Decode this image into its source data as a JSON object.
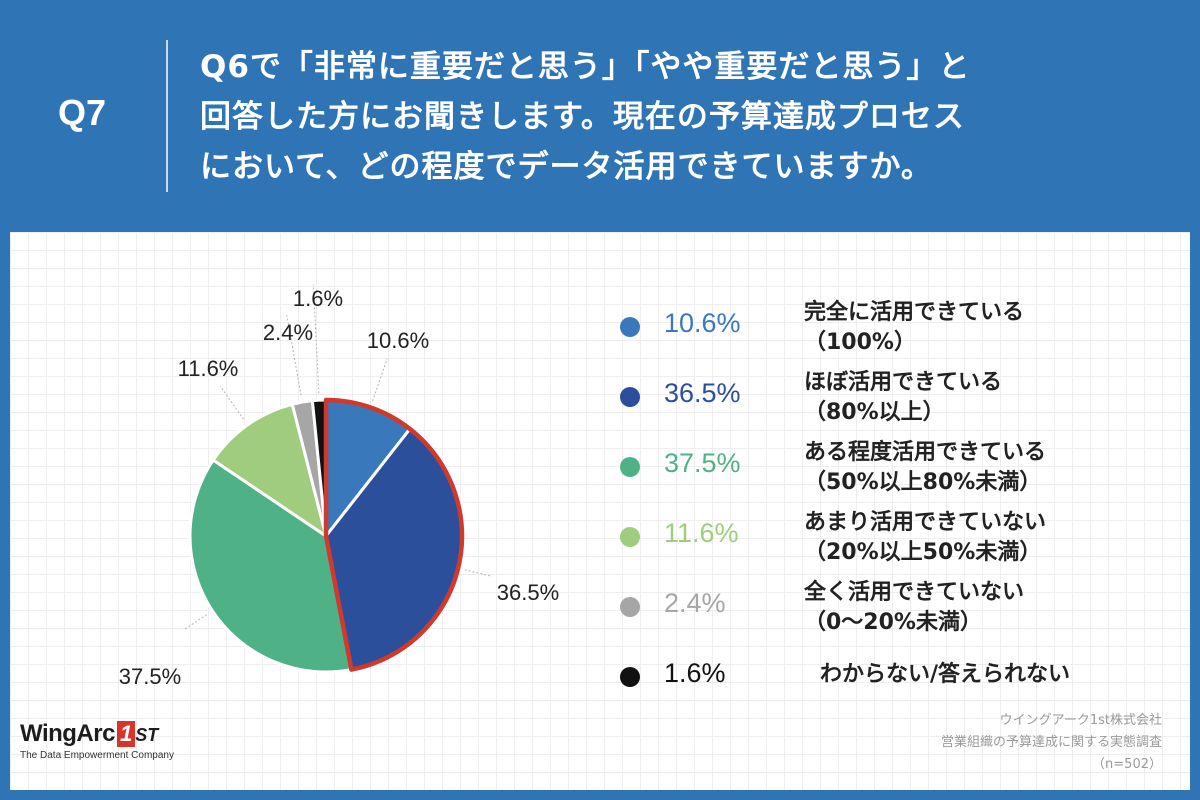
{
  "header": {
    "question_id": "Q7",
    "question_lines": [
      " Q6で「非常に重要だと思う」「やや重要だと思う」と",
      "回答した方にお聞きします。現在の予算達成プロセス",
      "において、どの程度でデータ活用できていますか。"
    ]
  },
  "chart_data": {
    "type": "pie",
    "title": "",
    "slices": [
      {
        "label": "完全に活用できている（100%）",
        "line1": "完全に活用できている",
        "line2": "（100%）",
        "value": 10.6,
        "display": "10.6%",
        "color": "#3a78bc"
      },
      {
        "label": "ほぼ活用できている（80%以上）",
        "line1": "ほぼ活用できている",
        "line2": "（80%以上）",
        "value": 36.5,
        "display": "36.5%",
        "color": "#2b4f9b"
      },
      {
        "label": "ある程度活用できている（50%以上80%未満）",
        "line1": "ある程度活用できている",
        "line2": "（50%以上80%未満）",
        "value": 37.5,
        "display": "37.5%",
        "color": "#4fb287"
      },
      {
        "label": "あまり活用できていない（20%以上50%未満）",
        "line1": "あまり活用できていない",
        "line2": "（20%以上50%未満）",
        "value": 11.6,
        "display": "11.6%",
        "color": "#9fcd7d"
      },
      {
        "label": "全く活用できていない（0〜20%未満）",
        "line1": "全く活用できていない",
        "line2": "（0〜20%未満）",
        "value": 2.4,
        "display": "2.4%",
        "color": "#a6a6a6"
      },
      {
        "label": "わからない/答えられない",
        "line1": "わからない/答えられない",
        "line2": "",
        "value": 1.6,
        "display": "1.6%",
        "color": "#111111"
      }
    ],
    "highlight_color": "#d0392b",
    "highlighted_slices": [
      0,
      1
    ]
  },
  "legend": {
    "pct_colors": [
      "#3a78bc",
      "#2b4f9b",
      "#4fb287",
      "#9fcd7d",
      "#a6a6a6",
      "#111111"
    ]
  },
  "logo": {
    "name": "WingArc",
    "badge": "1",
    "suffix": "ST",
    "tagline": "The Data Empowerment Company"
  },
  "source": {
    "line1": "ウイングアーク1st株式会社",
    "line2": "営業組織の予算達成に関する実態調査",
    "line3": "（n=502）"
  }
}
